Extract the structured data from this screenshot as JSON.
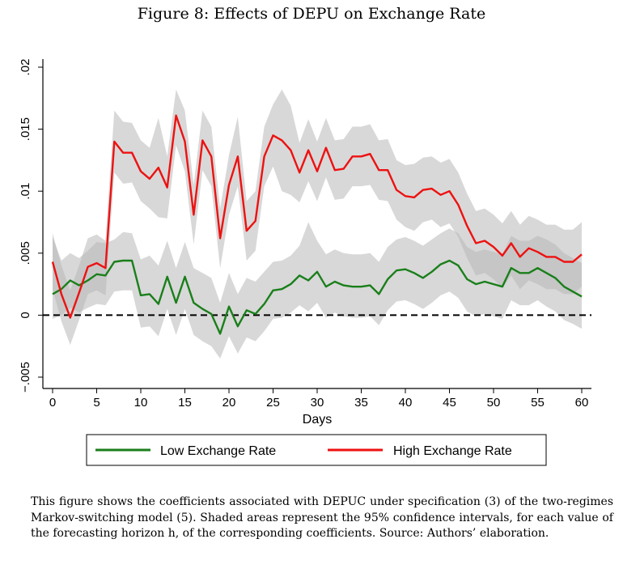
{
  "figure": {
    "title": "Figure 8: Effects of DEPU on Exchange Rate",
    "caption": "This figure shows the coefficients associated with DEPUC under specification (3) of the two-regimes Markov-switching model (5). Shaded areas represent the 95% confidence intervals, for each value of the forecasting horizon h, of the corresponding coefficients. Source: Authors’ elaboration."
  },
  "chart_data": {
    "type": "line",
    "title": "",
    "xlabel": "Days",
    "ylabel": "",
    "xlim": [
      0,
      60
    ],
    "ylim": [
      -0.005,
      0.02
    ],
    "xticks": [
      0,
      5,
      10,
      15,
      20,
      25,
      30,
      35,
      40,
      45,
      50,
      55,
      60
    ],
    "yticks": [
      -0.005,
      0,
      0.005,
      0.01,
      0.015,
      0.02
    ],
    "ytick_labels": [
      "−.005",
      "0",
      ".005",
      ".01",
      ".015",
      ".02"
    ],
    "xtick_labels": [
      "0",
      "5",
      "10",
      "15",
      "20",
      "25",
      "30",
      "35",
      "40",
      "45",
      "50",
      "55",
      "60"
    ],
    "reference_line": {
      "y": 0,
      "style": "dashed",
      "color": "#000000"
    },
    "grid": false,
    "legend_position": "bottom",
    "x": [
      0,
      1,
      2,
      3,
      4,
      5,
      6,
      7,
      8,
      9,
      10,
      11,
      12,
      13,
      14,
      15,
      16,
      17,
      18,
      19,
      20,
      21,
      22,
      23,
      24,
      25,
      26,
      27,
      28,
      29,
      30,
      31,
      32,
      33,
      34,
      35,
      36,
      37,
      38,
      39,
      40,
      41,
      42,
      43,
      44,
      45,
      46,
      47,
      48,
      49,
      50,
      51,
      52,
      53,
      54,
      55,
      56,
      57,
      58,
      59,
      60
    ],
    "series": [
      {
        "name": "Low Exchange Rate",
        "color": "#1a7f1a",
        "values": [
          0.0017,
          0.0021,
          0.0028,
          0.0024,
          0.0028,
          0.0033,
          0.0032,
          0.0043,
          0.0044,
          0.0044,
          0.0016,
          0.0017,
          0.0009,
          0.0031,
          0.001,
          0.0031,
          0.001,
          0.0005,
          0.0001,
          -0.0015,
          0.0007,
          -0.0009,
          0.0004,
          0.0001,
          0.0009,
          0.002,
          0.0021,
          0.0025,
          0.0032,
          0.0028,
          0.0035,
          0.0023,
          0.0027,
          0.0024,
          0.0023,
          0.0023,
          0.0024,
          0.0017,
          0.0029,
          0.0036,
          0.0037,
          0.0034,
          0.003,
          0.0035,
          0.0041,
          0.0044,
          0.004,
          0.0029,
          0.0025,
          0.0027,
          0.0025,
          0.0023,
          0.0038,
          0.0034,
          0.0034,
          0.0038,
          0.0034,
          0.003,
          0.0023,
          0.0019,
          0.0015
        ],
        "ci_lower": [
          -0.0003,
          0.0,
          0.0006,
          0.0002,
          0.0006,
          0.0009,
          0.0008,
          0.0019,
          0.002,
          0.002,
          -0.001,
          -0.0009,
          -0.0017,
          0.0005,
          -0.0016,
          0.0005,
          -0.0016,
          -0.0021,
          -0.0025,
          -0.0035,
          -0.0017,
          -0.0031,
          -0.0018,
          -0.0021,
          -0.0013,
          -0.0003,
          -0.0002,
          0.0002,
          0.0008,
          0.0003,
          0.001,
          -0.0002,
          0.0002,
          -0.0001,
          -0.0002,
          -0.0002,
          -0.0001,
          -0.0008,
          0.0004,
          0.0011,
          0.0012,
          0.0009,
          0.0005,
          0.001,
          0.0016,
          0.0019,
          0.0014,
          0.0003,
          -0.0001,
          0.0001,
          -0.0001,
          -0.0003,
          0.0012,
          0.0008,
          0.0008,
          0.0012,
          0.0007,
          0.0003,
          -0.0004,
          -0.0007,
          -0.0011
        ],
        "ci_upper": [
          0.0063,
          0.0044,
          0.005,
          0.0046,
          0.0052,
          0.0059,
          0.0058,
          0.0061,
          0.0067,
          0.0066,
          0.0045,
          0.0048,
          0.004,
          0.006,
          0.0038,
          0.0059,
          0.0038,
          0.0034,
          0.003,
          0.001,
          0.0034,
          0.0017,
          0.003,
          0.0027,
          0.0035,
          0.0043,
          0.0044,
          0.0048,
          0.0056,
          0.0075,
          0.006,
          0.0049,
          0.0053,
          0.005,
          0.0049,
          0.0049,
          0.005,
          0.0043,
          0.0055,
          0.0061,
          0.0063,
          0.006,
          0.0056,
          0.0061,
          0.0066,
          0.007,
          0.0066,
          0.0055,
          0.0051,
          0.0053,
          0.0051,
          0.0049,
          0.0064,
          0.006,
          0.006,
          0.0064,
          0.0061,
          0.0057,
          0.005,
          0.0046,
          0.0042
        ]
      },
      {
        "name": "High Exchange Rate",
        "color": "#ee1111",
        "values": [
          0.0043,
          0.0017,
          -0.0002,
          0.0018,
          0.0039,
          0.0042,
          0.0038,
          0.014,
          0.0131,
          0.0131,
          0.0116,
          0.011,
          0.0119,
          0.0103,
          0.0161,
          0.014,
          0.0081,
          0.0141,
          0.0128,
          0.0062,
          0.0105,
          0.0128,
          0.0068,
          0.0076,
          0.0128,
          0.0145,
          0.0141,
          0.0133,
          0.0115,
          0.0133,
          0.0116,
          0.0135,
          0.0117,
          0.0118,
          0.0128,
          0.0128,
          0.013,
          0.0117,
          0.0117,
          0.0101,
          0.0096,
          0.0095,
          0.0101,
          0.0102,
          0.0097,
          0.01,
          0.0089,
          0.0072,
          0.0058,
          0.006,
          0.0055,
          0.0048,
          0.0058,
          0.0047,
          0.0054,
          0.0051,
          0.0047,
          0.0047,
          0.0043,
          0.0043,
          0.0049
        ],
        "ci_lower": [
          0.0021,
          -0.0005,
          -0.0024,
          -0.0004,
          0.0017,
          0.002,
          0.0016,
          0.0115,
          0.0106,
          0.0107,
          0.0092,
          0.0086,
          0.0079,
          0.0078,
          0.0137,
          0.0116,
          0.0057,
          0.0117,
          0.0104,
          0.0038,
          0.0081,
          0.0104,
          0.0044,
          0.0052,
          0.0104,
          0.012,
          0.01,
          0.0097,
          0.0091,
          0.0108,
          0.0092,
          0.0111,
          0.0093,
          0.0094,
          0.0104,
          0.0104,
          0.0105,
          0.0093,
          0.0092,
          0.0077,
          0.0071,
          0.0068,
          0.0075,
          0.0077,
          0.0071,
          0.0074,
          0.0063,
          0.0046,
          0.0032,
          0.0034,
          0.0029,
          0.0022,
          0.0032,
          0.0021,
          0.0028,
          0.0025,
          0.0021,
          0.0021,
          0.0017,
          0.0017,
          0.0023
        ],
        "ci_upper": [
          0.0066,
          0.004,
          0.002,
          0.004,
          0.0062,
          0.0065,
          0.006,
          0.0165,
          0.0156,
          0.0155,
          0.0141,
          0.0135,
          0.0159,
          0.0128,
          0.0182,
          0.0165,
          0.0105,
          0.0165,
          0.0152,
          0.0086,
          0.0129,
          0.016,
          0.0092,
          0.01,
          0.0152,
          0.017,
          0.0182,
          0.0169,
          0.0139,
          0.0158,
          0.014,
          0.0159,
          0.0141,
          0.0142,
          0.0152,
          0.0152,
          0.0154,
          0.0141,
          0.0142,
          0.0125,
          0.0121,
          0.0122,
          0.0127,
          0.0128,
          0.0123,
          0.0126,
          0.0115,
          0.0098,
          0.0084,
          0.0086,
          0.0081,
          0.0074,
          0.0084,
          0.0073,
          0.008,
          0.0077,
          0.0073,
          0.0073,
          0.0069,
          0.0069,
          0.0075
        ]
      }
    ]
  }
}
